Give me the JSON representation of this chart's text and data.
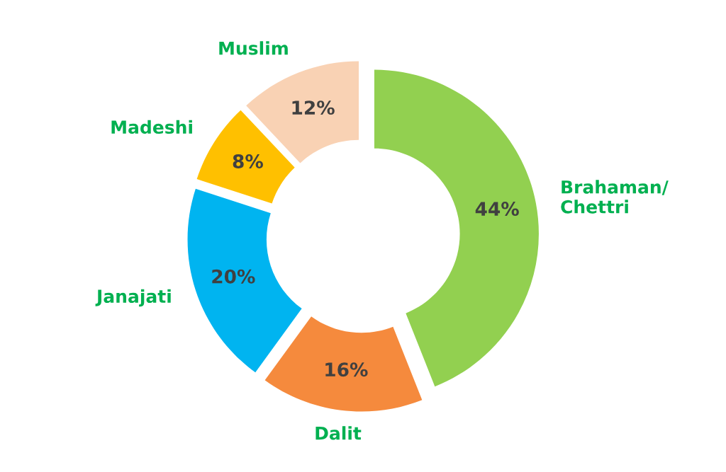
{
  "chart_data": {
    "type": "donut",
    "categories": [
      "Brahaman/\nChettri",
      "Dalit",
      "Janajati",
      "Madeshi",
      "Muslim"
    ],
    "values": [
      44,
      16,
      20,
      8,
      12
    ],
    "colors": [
      "#92d050",
      "#f58a3d",
      "#00b4f0",
      "#ffc000",
      "#f9d2b4"
    ],
    "value_labels": [
      "44%",
      "16%",
      "20%",
      "8%",
      "12%"
    ],
    "legend": false
  }
}
